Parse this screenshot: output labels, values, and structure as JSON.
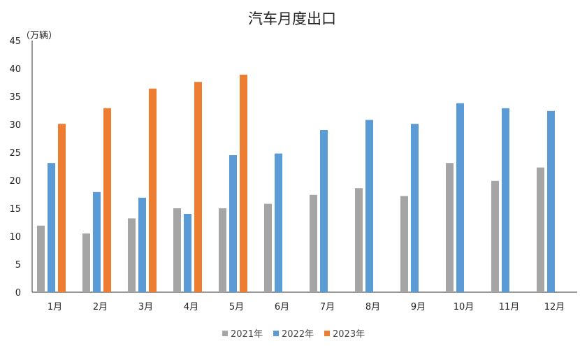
{
  "chart_data": {
    "type": "bar",
    "title": "汽车月度出口",
    "ylabel": "（万辆）",
    "xlabel": "",
    "ylim": [
      0,
      45
    ],
    "yticks": [
      0,
      5,
      10,
      15,
      20,
      25,
      30,
      35,
      40,
      45
    ],
    "categories": [
      "1月",
      "2月",
      "3月",
      "4月",
      "5月",
      "6月",
      "7月",
      "8月",
      "9月",
      "10月",
      "11月",
      "12月"
    ],
    "series": [
      {
        "name": "2021年",
        "color": "#a5a5a5",
        "values": [
          11.9,
          10.5,
          13.2,
          15.0,
          15.0,
          15.8,
          17.4,
          18.6,
          17.2,
          23.1,
          19.9,
          22.3
        ]
      },
      {
        "name": "2022年",
        "color": "#5b9bd5",
        "values": [
          23.1,
          17.9,
          16.9,
          14.0,
          24.5,
          24.8,
          29.0,
          30.8,
          30.1,
          33.8,
          32.9,
          32.4
        ]
      },
      {
        "name": "2023年",
        "color": "#ed7d31",
        "values": [
          30.1,
          32.9,
          36.4,
          37.6,
          38.9,
          null,
          null,
          null,
          null,
          null,
          null,
          null
        ]
      }
    ],
    "grid": false,
    "legend": "bottom"
  }
}
